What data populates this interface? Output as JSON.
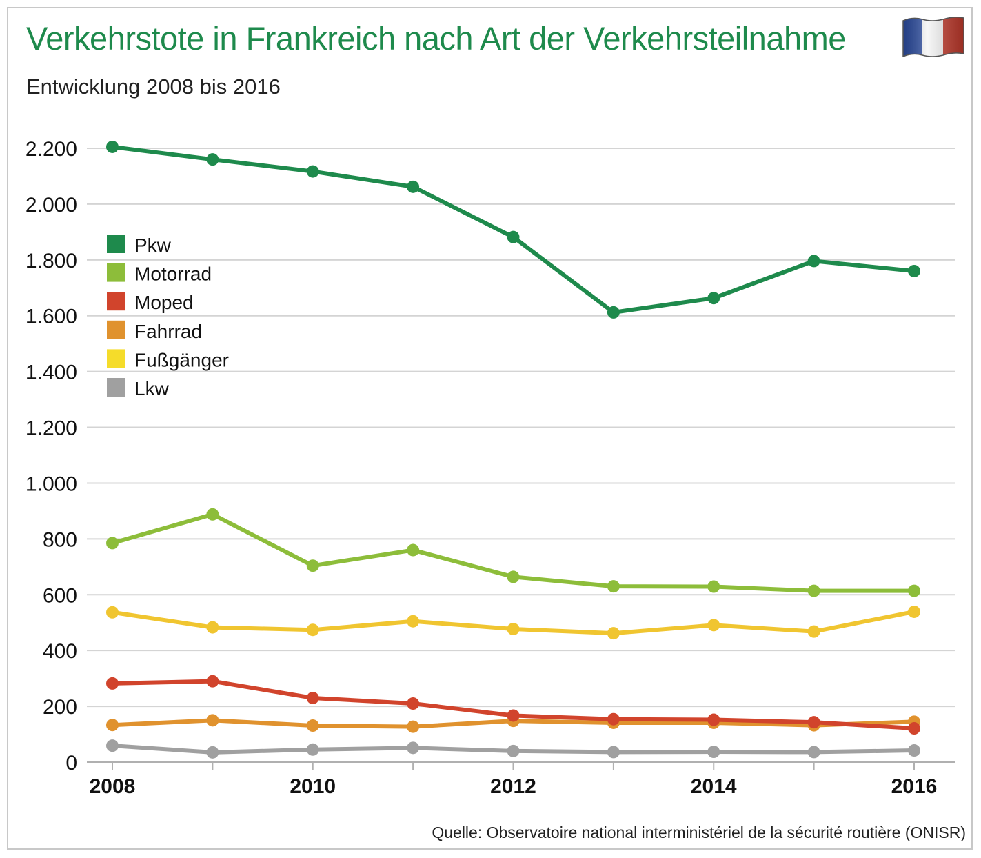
{
  "header": {
    "title": "Verkehrstote in Frankreich nach Art der Verkehrsteilnahme",
    "subtitle": "Entwicklung 2008 bis 2016"
  },
  "footer": {
    "source": "Quelle: Observatoire national interministériel de la sécurité routière (ONISR)"
  },
  "flag": {
    "icon": "france-flag-icon",
    "colors": [
      "#2a4a9c",
      "#ffffff",
      "#c0392b"
    ]
  },
  "chart_data": {
    "type": "line",
    "title": "Verkehrstote in Frankreich nach Art der Verkehrsteilnahme",
    "subtitle": "Entwicklung 2008 bis 2016",
    "x": [
      2008,
      2009,
      2010,
      2011,
      2012,
      2013,
      2014,
      2015,
      2016
    ],
    "x_tick_labels": [
      "2008",
      "2010",
      "2012",
      "2014",
      "2016"
    ],
    "x_tick_values": [
      2008,
      2010,
      2012,
      2014,
      2016
    ],
    "y_tick_labels": [
      "0",
      "200",
      "400",
      "600",
      "800",
      "1.000",
      "1.200",
      "1.400",
      "1.600",
      "1.800",
      "2.000",
      "2.200"
    ],
    "y_tick_values": [
      0,
      200,
      400,
      600,
      800,
      1000,
      1200,
      1400,
      1600,
      1800,
      2000,
      2200
    ],
    "ylim": [
      0,
      2200
    ],
    "xlim": [
      2008,
      2016
    ],
    "grid": "horizontal",
    "legend_position": "top-left",
    "series": [
      {
        "name": "Pkw",
        "color": "#1e8a4c",
        "values": [
          2205,
          2160,
          2117,
          2062,
          1882,
          1612,
          1663,
          1796,
          1760
        ]
      },
      {
        "name": "Motorrad",
        "color": "#8dbd3a",
        "values": [
          785,
          888,
          704,
          760,
          664,
          630,
          629,
          614,
          614
        ]
      },
      {
        "name": "Moped",
        "color": "#d1442c",
        "values": [
          282,
          290,
          230,
          210,
          167,
          154,
          152,
          143,
          121
        ]
      },
      {
        "name": "Fahrrad",
        "color": "#e0922e",
        "values": [
          133,
          150,
          131,
          127,
          148,
          141,
          141,
          132,
          145
        ]
      },
      {
        "name": "Fußgänger",
        "color": "#f0c530",
        "values": [
          537,
          483,
          474,
          505,
          477,
          462,
          491,
          468,
          539
        ]
      },
      {
        "name": "Lkw",
        "color": "#a0a0a0",
        "values": [
          59,
          35,
          45,
          51,
          40,
          36,
          37,
          36,
          42
        ]
      }
    ],
    "legend_swatch_colors": [
      "#1e8a4c",
      "#8dbd3a",
      "#d1442c",
      "#e0922e",
      "#f5dc2a",
      "#a0a0a0"
    ]
  }
}
